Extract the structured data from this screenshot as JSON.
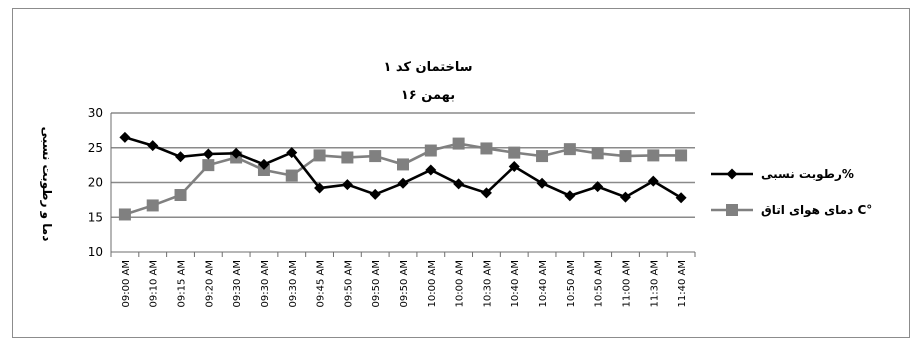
{
  "chart_data": {
    "type": "line",
    "title": "ساختمان کد ۱",
    "subtitle": "۱۶ بهمن",
    "ylabel": "دما و رطوبت نسبی",
    "xlabel": "",
    "ylim": [
      10,
      30
    ],
    "yticks": [
      10,
      15,
      20,
      25,
      30
    ],
    "grid": true,
    "legend_position": "right",
    "categories": [
      "09:00 AM",
      "09:10 AM",
      "09:15 AM",
      "09:20 AM",
      "09:30 AM",
      "09:30 AM",
      "09:30 AM",
      "09:45 AM",
      "09:50 AM",
      "09:50 AM",
      "09:50 AM",
      "10:00 AM",
      "10:00 AM",
      "10:30 AM",
      "10:40 AM",
      "10:40 AM",
      "10:50 AM",
      "10:50 AM",
      "11:00 AM",
      "11:30 AM",
      "11:40 AM"
    ],
    "series": [
      {
        "name": "رطوبت نسبی%",
        "marker": "diamond",
        "color": "#000000",
        "values": [
          26.5,
          25.3,
          23.7,
          24.1,
          24.2,
          22.6,
          24.3,
          19.2,
          19.7,
          18.3,
          19.9,
          21.8,
          19.8,
          18.5,
          22.3,
          19.9,
          18.1,
          19.4,
          17.9,
          20.2,
          17.8
        ]
      },
      {
        "name": "دمای هوای اتاق C°",
        "marker": "square",
        "color": "#808080",
        "values": [
          15.4,
          16.7,
          18.2,
          22.5,
          23.6,
          21.8,
          21.0,
          23.9,
          23.6,
          23.8,
          22.6,
          24.6,
          25.6,
          24.9,
          24.3,
          23.8,
          24.8,
          24.2,
          23.8,
          23.9,
          23.9
        ]
      }
    ]
  }
}
